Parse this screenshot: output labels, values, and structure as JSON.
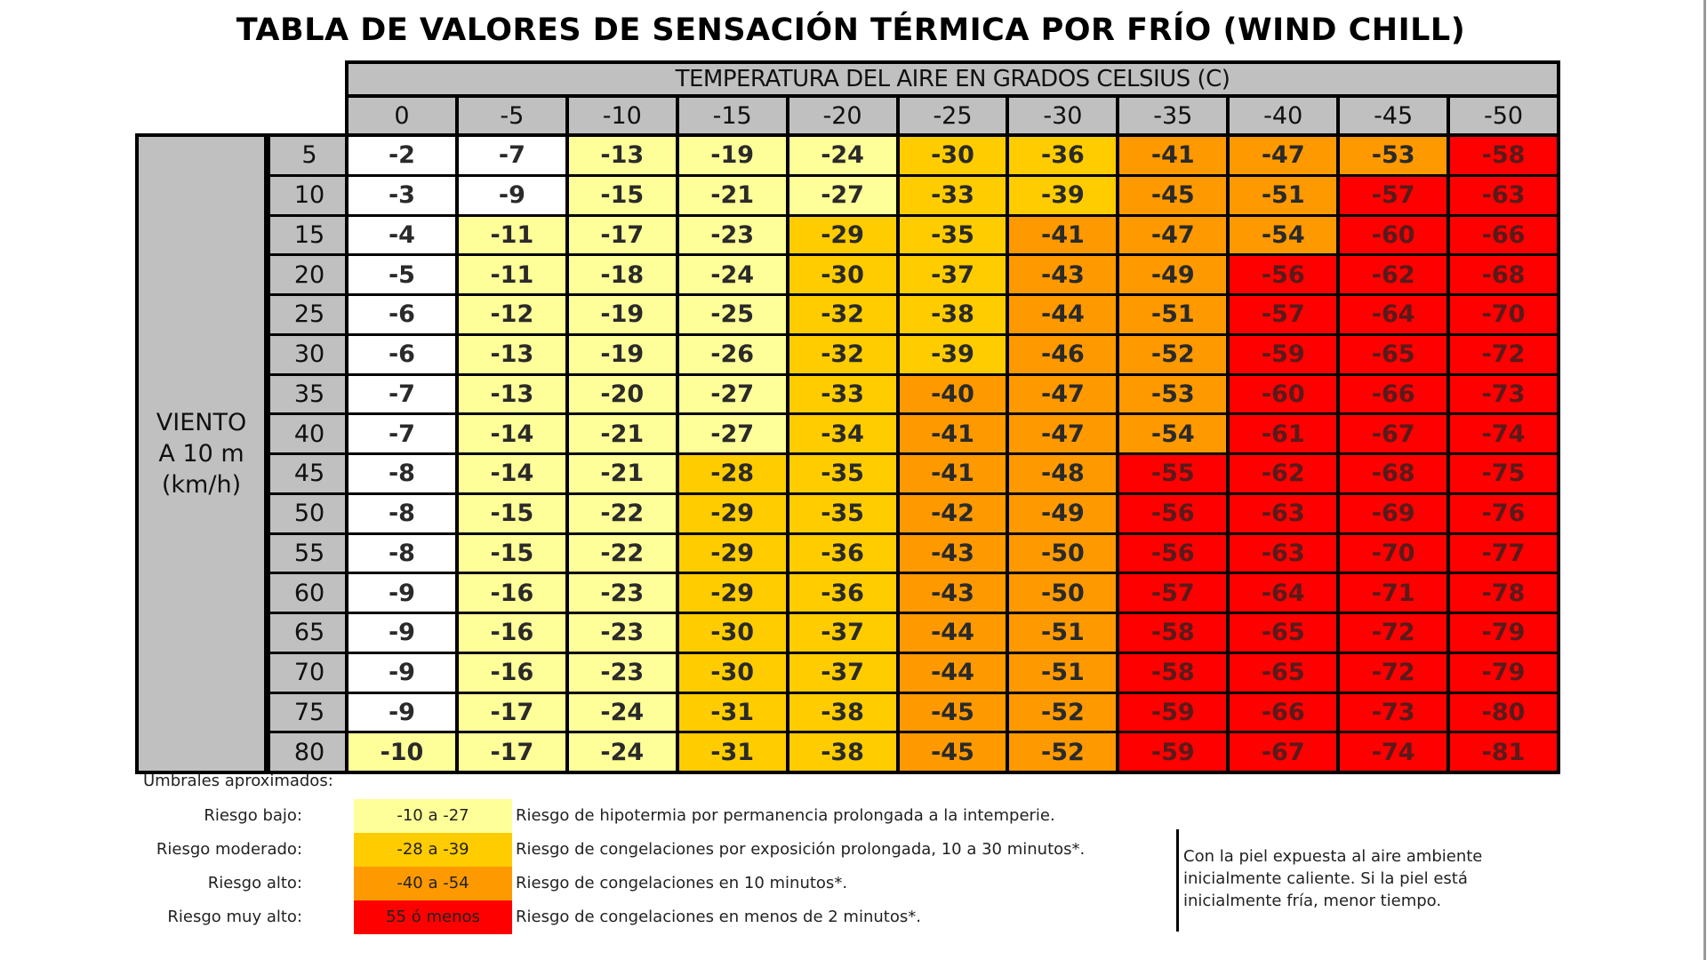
{
  "title": "TABLA DE VALORES DE SENSACIÓN TÉRMICA POR FRÍO (WIND CHILL)",
  "header_band": "TEMPERATURA DEL AIRE EN GRADOS CELSIUS (C)",
  "row_axis_label": [
    "VIENTO",
    "A 10 m",
    "(km/h)"
  ],
  "colors": {
    "header_gray": "#c0c0c0",
    "none": "#ffffff",
    "low": "#ffff99",
    "moderate": "#ffcc00",
    "high": "#ff9900",
    "very_high": "#ff0000"
  },
  "chart_data": {
    "type": "heatmap",
    "title": "TABLA DE VALORES DE SENSACIÓN TÉRMICA POR FRÍO (WIND CHILL)",
    "xlabel": "TEMPERATURA DEL AIRE EN GRADOS CELSIUS (C)",
    "ylabel": "VIENTO A 10 m (km/h)",
    "x": [
      "0",
      "-5",
      "-10",
      "-15",
      "-20",
      "-25",
      "-30",
      "-35",
      "-40",
      "-45",
      "-50"
    ],
    "y": [
      "5",
      "10",
      "15",
      "20",
      "25",
      "30",
      "35",
      "40",
      "45",
      "50",
      "55",
      "60",
      "65",
      "70",
      "75",
      "80"
    ],
    "values": [
      [
        -2,
        -7,
        -13,
        -19,
        -24,
        -30,
        -36,
        -41,
        -47,
        -53,
        -58
      ],
      [
        -3,
        -9,
        -15,
        -21,
        -27,
        -33,
        -39,
        -45,
        -51,
        -57,
        -63
      ],
      [
        -4,
        -11,
        -17,
        -23,
        -29,
        -35,
        -41,
        -47,
        -54,
        -60,
        -66
      ],
      [
        -5,
        -11,
        -18,
        -24,
        -30,
        -37,
        -43,
        -49,
        -56,
        -62,
        -68
      ],
      [
        -6,
        -12,
        -19,
        -25,
        -32,
        -38,
        -44,
        -51,
        -57,
        -64,
        -70
      ],
      [
        -6,
        -13,
        -19,
        -26,
        -32,
        -39,
        -46,
        -52,
        -59,
        -65,
        -72
      ],
      [
        -7,
        -13,
        -20,
        -27,
        -33,
        -40,
        -47,
        -53,
        -60,
        -66,
        -73
      ],
      [
        -7,
        -14,
        -21,
        -27,
        -34,
        -41,
        -47,
        -54,
        -61,
        -67,
        -74
      ],
      [
        -8,
        -14,
        -21,
        -28,
        -35,
        -41,
        -48,
        -55,
        -62,
        -68,
        -75
      ],
      [
        -8,
        -15,
        -22,
        -29,
        -35,
        -42,
        -49,
        -56,
        -63,
        -69,
        -76
      ],
      [
        -8,
        -15,
        -22,
        -29,
        -36,
        -43,
        -50,
        -56,
        -63,
        -70,
        -77
      ],
      [
        -9,
        -16,
        -23,
        -29,
        -36,
        -43,
        -50,
        -57,
        -64,
        -71,
        -78
      ],
      [
        -9,
        -16,
        -23,
        -30,
        -37,
        -44,
        -51,
        -58,
        -65,
        -72,
        -79
      ],
      [
        -9,
        -16,
        -23,
        -30,
        -37,
        -44,
        -51,
        -58,
        -65,
        -72,
        -79
      ],
      [
        -9,
        -17,
        -24,
        -31,
        -38,
        -45,
        -52,
        -59,
        -66,
        -73,
        -80
      ],
      [
        -10,
        -17,
        -24,
        -31,
        -38,
        -45,
        -52,
        -59,
        -67,
        -74,
        -81
      ]
    ],
    "color_bands": [
      {
        "range": "> -10",
        "color": "#ffffff"
      },
      {
        "range": "-10 a -27",
        "color": "#ffff99"
      },
      {
        "range": "-28 a -39",
        "color": "#ffcc00"
      },
      {
        "range": "-40 a -54",
        "color": "#ff9900"
      },
      {
        "range": "55 ó menos",
        "color": "#ff0000"
      }
    ]
  },
  "legend": {
    "title": "Umbrales aproximados:",
    "items": [
      {
        "label": "Riesgo bajo:",
        "range": "-10 a -27",
        "color": "#ffff99",
        "description": "Riesgo de hipotermia por permanencia prolongada a la intemperie."
      },
      {
        "label": "Riesgo moderado:",
        "range": "-28 a -39",
        "color": "#ffcc00",
        "description": "Riesgo de congelaciones por exposición prolongada, 10 a 30 minutos*."
      },
      {
        "label": "Riesgo alto:",
        "range": "-40 a -54",
        "color": "#ff9900",
        "description": "Riesgo de congelaciones en 10 minutos*."
      },
      {
        "label": "Riesgo muy alto:",
        "range": "55 ó menos",
        "color": "#ff0000",
        "description": "Riesgo de congelaciones en menos de 2 minutos*."
      }
    ]
  },
  "note": [
    "Con la piel expuesta al aire ambiente",
    "inicialmente caliente. Si la piel está",
    "inicialmente fría, menor tiempo."
  ]
}
